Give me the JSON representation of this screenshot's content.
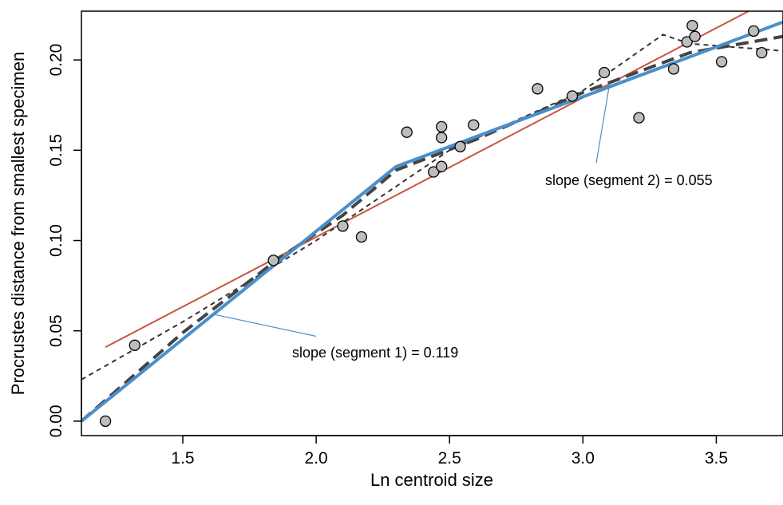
{
  "chart_data": {
    "type": "scatter",
    "title": "",
    "xlabel": "Ln centroid size",
    "ylabel": "Procrustes distance from smallest specimen",
    "xlim": [
      1.12,
      3.75
    ],
    "ylim": [
      -0.008,
      0.227
    ],
    "xticks": [
      1.5,
      2.0,
      2.5,
      3.0,
      3.5
    ],
    "xtick_labels": [
      "1.5",
      "2.0",
      "2.5",
      "3.0",
      "3.5"
    ],
    "yticks": [
      0.0,
      0.05,
      0.1,
      0.15,
      0.2
    ],
    "ytick_labels": [
      "0.00",
      "0.05",
      "0.10",
      "0.15",
      "0.20"
    ],
    "grid": false,
    "points": [
      {
        "x": 1.21,
        "y": 0.0
      },
      {
        "x": 1.32,
        "y": 0.042
      },
      {
        "x": 1.84,
        "y": 0.089
      },
      {
        "x": 2.1,
        "y": 0.108
      },
      {
        "x": 2.17,
        "y": 0.102
      },
      {
        "x": 2.34,
        "y": 0.16
      },
      {
        "x": 2.44,
        "y": 0.138
      },
      {
        "x": 2.47,
        "y": 0.141
      },
      {
        "x": 2.47,
        "y": 0.157
      },
      {
        "x": 2.47,
        "y": 0.163
      },
      {
        "x": 2.54,
        "y": 0.152
      },
      {
        "x": 2.59,
        "y": 0.164
      },
      {
        "x": 2.83,
        "y": 0.184
      },
      {
        "x": 2.96,
        "y": 0.18
      },
      {
        "x": 3.08,
        "y": 0.193
      },
      {
        "x": 3.21,
        "y": 0.168
      },
      {
        "x": 3.34,
        "y": 0.195
      },
      {
        "x": 3.39,
        "y": 0.21
      },
      {
        "x": 3.41,
        "y": 0.219
      },
      {
        "x": 3.42,
        "y": 0.213
      },
      {
        "x": 3.52,
        "y": 0.199
      },
      {
        "x": 3.64,
        "y": 0.216
      },
      {
        "x": 3.67,
        "y": 0.204
      }
    ],
    "series": [
      {
        "style": "linear-fit",
        "color": "#c8553d",
        "width": 2,
        "dash": "",
        "x": [
          1.21,
          3.66
        ],
        "y": [
          0.041,
          0.23
        ]
      },
      {
        "style": "short-dash",
        "color": "#333333",
        "width": 2,
        "dash": "6,5",
        "x": [
          1.12,
          1.5,
          2.0,
          2.5,
          3.0,
          3.3,
          3.4,
          3.75
        ],
        "y": [
          0.023,
          0.055,
          0.1,
          0.15,
          0.183,
          0.214,
          0.209,
          0.205
        ]
      },
      {
        "style": "long-dash",
        "color": "#444444",
        "width": 4,
        "dash": "16,8",
        "x": [
          1.12,
          1.5,
          1.85,
          2.1,
          2.3,
          2.6,
          3.0,
          3.4,
          3.75
        ],
        "y": [
          0.0,
          0.049,
          0.089,
          0.114,
          0.139,
          0.156,
          0.182,
          0.204,
          0.213
        ]
      },
      {
        "style": "segmented-fit",
        "color": "#4a8fcc",
        "width": 4,
        "dash": "",
        "x": [
          1.12,
          2.3,
          3.75
        ],
        "y": [
          0.0,
          0.141,
          0.221
        ]
      }
    ],
    "annotations": [
      {
        "text": "slope (segment 1) = 0.119",
        "color": "#4a8fcc",
        "line_from": {
          "x": 1.62,
          "y": 0.059
        },
        "line_to": {
          "x": 2.0,
          "y": 0.047
        }
      },
      {
        "text": "slope (segment 2) = 0.055",
        "color": "#4a8fcc",
        "line_from": {
          "x": 3.1,
          "y": 0.187
        },
        "line_to": {
          "x": 3.05,
          "y": 0.143
        }
      }
    ]
  }
}
